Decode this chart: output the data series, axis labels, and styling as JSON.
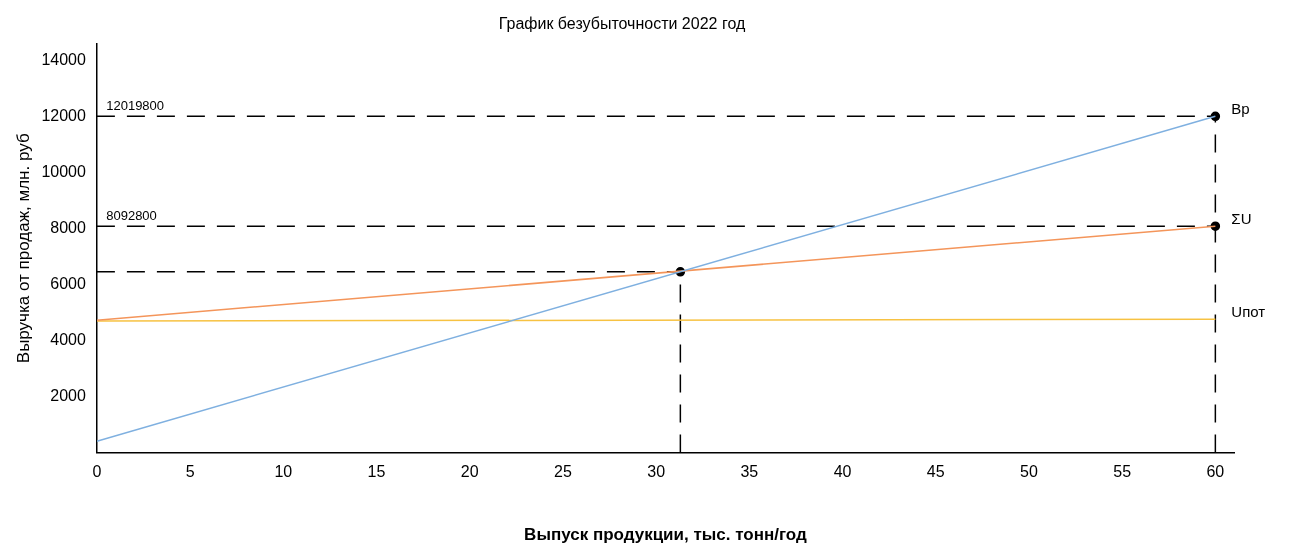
{
  "chart_data": {
    "type": "line",
    "title": "График безубыточности 2022 год",
    "xlabel": "Выпуск продукции, тыс. тонн/год",
    "ylabel": "Выручка от продаж, млн. руб",
    "xlim": [
      0,
      61
    ],
    "ylim": [
      0,
      14600
    ],
    "xticks": [
      0,
      5,
      10,
      15,
      20,
      25,
      30,
      35,
      40,
      45,
      50,
      55,
      60
    ],
    "yticks": [
      2000,
      4000,
      6000,
      8000,
      10000,
      12000,
      14000
    ],
    "grid": false,
    "legend": false,
    "marker": "none",
    "series": [
      {
        "name": "Вр",
        "color": "#7fb0e0",
        "x": [
          0,
          60
        ],
        "values": [
          400,
          12020
        ]
      },
      {
        "name": "ΣU",
        "color": "#f4955a",
        "x": [
          0,
          60
        ],
        "values": [
          4730,
          8090
        ]
      },
      {
        "name": "Uпот",
        "color": "#f7c242",
        "x": [
          0,
          60
        ],
        "values": [
          4700,
          4760
        ]
      },
      {
        "color": "#000000",
        "line_style": "dashed",
        "x": [
          0,
          60
        ],
        "values": [
          12020,
          12020
        ]
      },
      {
        "color": "#000000",
        "line_style": "dashed",
        "x": [
          0,
          60
        ],
        "values": [
          8090,
          8090
        ]
      },
      {
        "color": "#000000",
        "line_style": "dashed",
        "x": [
          0,
          31.3
        ],
        "values": [
          6460,
          6460
        ]
      },
      {
        "color": "#000000",
        "line_style": "dashed",
        "x": [
          60,
          60
        ],
        "values": [
          0,
          12020
        ]
      },
      {
        "color": "#000000",
        "line_style": "dashed",
        "x": [
          31.3,
          31.3
        ],
        "values": [
          0,
          6460
        ]
      },
      {
        "type": "scatter",
        "marker": "circle",
        "color": "#000000",
        "x": [
          31.3,
          60,
          60
        ],
        "values": [
          6460,
          12020,
          8090
        ]
      }
    ],
    "annotations": [
      {
        "text": "12019800",
        "x": 0.5,
        "y": 12020
      },
      {
        "text": "8092800",
        "x": 0.5,
        "y": 8090
      }
    ]
  }
}
